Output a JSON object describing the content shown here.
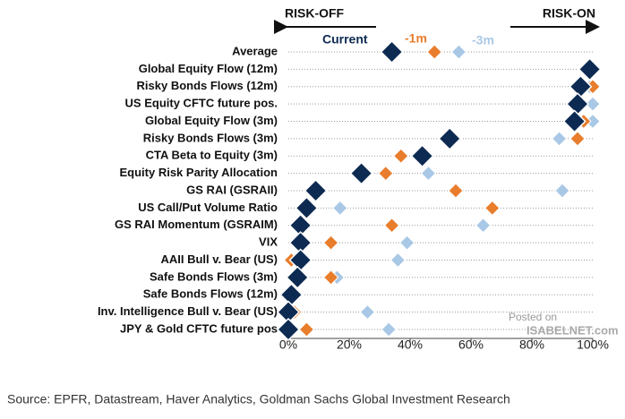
{
  "chart_data": {
    "type": "dot",
    "risk_off_label": "RISK-OFF",
    "risk_on_label": "RISK-ON",
    "watermark": [
      "Posted on",
      "ISABELNET.com"
    ],
    "source": "Source: EPFR, Datastream, Haver Analytics, Goldman Sachs Global Investment Research",
    "categories": [
      "Average",
      "Global Equity Flow (12m)",
      "Risky Bonds Flows (12m)",
      "US Equity CFTC future pos.",
      "Global Equity Flow (3m)",
      "Risky Bonds Flows (3m)",
      "CTA Beta to Equity (3m)",
      "Equity Risk Parity Allocation",
      "GS RAI (GSRAII)",
      "US Call/Put Volume Ratio",
      "GS RAI Momentum (GSRAIM)",
      "VIX",
      "AAII Bull v. Bear (US)",
      "Safe Bonds Flows (3m)",
      "Safe Bonds Flows (12m)",
      "Inv. Intelligence Bull v. Bear (US)",
      "JPY & Gold CFTC future pos"
    ],
    "series": [
      {
        "name": "-3m",
        "color": "#a9c8e6",
        "values": [
          56,
          99,
          99,
          100,
          100,
          89,
          44,
          46,
          90,
          17,
          64,
          39,
          36,
          16,
          0,
          26,
          33
        ]
      },
      {
        "name": "-1m",
        "color": "#e87d2c",
        "values": [
          48,
          98,
          100,
          95,
          97,
          95,
          37,
          32,
          55,
          67,
          34,
          14,
          1,
          14,
          1,
          2,
          6
        ]
      },
      {
        "name": "Current",
        "color": "#0d2a52",
        "values": [
          34,
          99,
          96,
          95,
          94,
          53,
          44,
          24,
          9,
          6,
          4,
          4,
          4,
          3,
          1,
          0,
          0
        ]
      }
    ],
    "xlim": [
      0,
      100
    ],
    "xticks": [
      {
        "value": 0,
        "label": "0%"
      },
      {
        "value": 20,
        "label": "20%"
      },
      {
        "value": 40,
        "label": "40%"
      },
      {
        "value": 60,
        "label": "60%"
      },
      {
        "value": 80,
        "label": "80%"
      },
      {
        "value": 100,
        "label": "100%"
      }
    ],
    "grid": true
  }
}
